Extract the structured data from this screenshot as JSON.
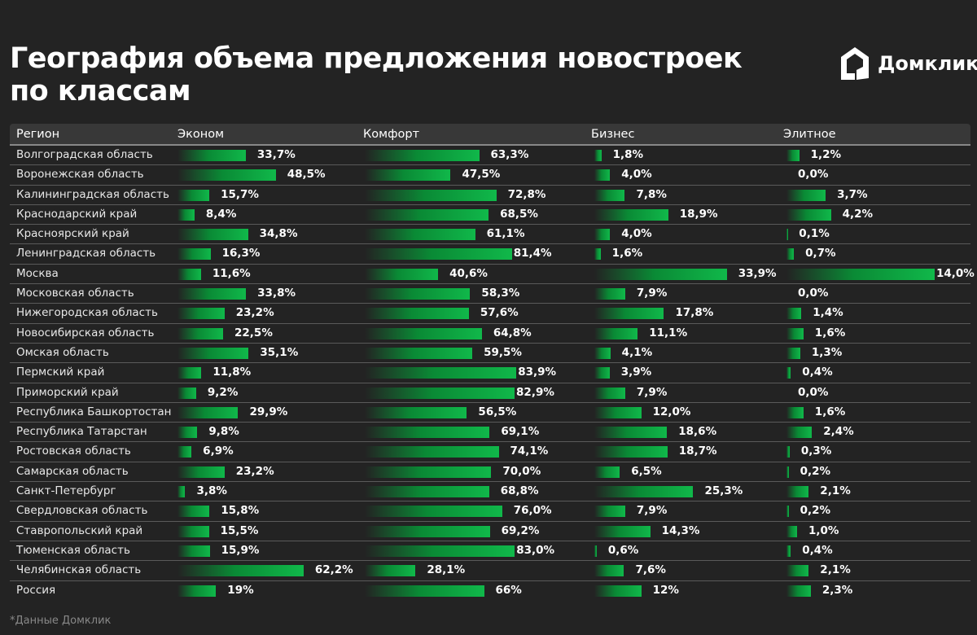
{
  "title": "География объема предложения новостроек по классам",
  "logo": "Домклик",
  "footnote": "*Данные Домклик",
  "chart_data": {
    "type": "table",
    "title": "География объема предложения новостроек по классам",
    "columns": [
      "Регион",
      "Эконом",
      "Комфорт",
      "Бизнес",
      "Элитное"
    ],
    "rows": [
      {
        "region": "Волгоградская область",
        "values": [
          "33,7%",
          "63,3%",
          "1,8%",
          "1,2%"
        ]
      },
      {
        "region": "Воронежская область",
        "values": [
          "48,5%",
          "47,5%",
          "4,0%",
          "0,0%"
        ]
      },
      {
        "region": "Калининградская область",
        "values": [
          "15,7%",
          "72,8%",
          "7,8%",
          "3,7%"
        ]
      },
      {
        "region": "Краснодарский край",
        "values": [
          "8,4%",
          "68,5%",
          "18,9%",
          "4,2%"
        ]
      },
      {
        "region": "Красноярский край",
        "values": [
          "34,8%",
          "61,1%",
          "4,0%",
          "0,1%"
        ]
      },
      {
        "region": "Ленинградская область",
        "values": [
          "16,3%",
          "81,4%",
          "1,6%",
          "0,7%"
        ]
      },
      {
        "region": "Москва",
        "values": [
          "11,6%",
          "40,6%",
          "33,9%",
          "14,0%"
        ]
      },
      {
        "region": "Московская область",
        "values": [
          "33,8%",
          "58,3%",
          "7,9%",
          "0,0%"
        ]
      },
      {
        "region": "Нижегородская область",
        "values": [
          "23,2%",
          "57,6%",
          "17,8%",
          "1,4%"
        ]
      },
      {
        "region": "Новосибирская область",
        "values": [
          "22,5%",
          "64,8%",
          "11,1%",
          "1,6%"
        ]
      },
      {
        "region": "Омская область",
        "values": [
          "35,1%",
          "59,5%",
          "4,1%",
          "1,3%"
        ]
      },
      {
        "region": "Пермский край",
        "values": [
          "11,8%",
          "83,9%",
          "3,9%",
          "0,4%"
        ]
      },
      {
        "region": "Приморский край",
        "values": [
          "9,2%",
          "82,9%",
          "7,9%",
          "0,0%"
        ]
      },
      {
        "region": "Республика Башкортостан",
        "values": [
          "29,9%",
          "56,5%",
          "12,0%",
          "1,6%"
        ]
      },
      {
        "region": "Республика Татарстан",
        "values": [
          "9,8%",
          "69,1%",
          "18,6%",
          "2,4%"
        ]
      },
      {
        "region": "Ростовская область",
        "values": [
          "6,9%",
          "74,1%",
          "18,7%",
          "0,3%"
        ]
      },
      {
        "region": "Самарская область",
        "values": [
          "23,2%",
          "70,0%",
          "6,5%",
          "0,2%"
        ]
      },
      {
        "region": "Санкт-Петербург",
        "values": [
          "3,8%",
          "68,8%",
          "25,3%",
          "2,1%"
        ]
      },
      {
        "region": "Свердловская область",
        "values": [
          "15,8%",
          "76,0%",
          "7,9%",
          "0,2%"
        ]
      },
      {
        "region": "Ставропольский край",
        "values": [
          "15,5%",
          "69,2%",
          "14,3%",
          "1,0%"
        ]
      },
      {
        "region": "Тюменская область",
        "values": [
          "15,9%",
          "83,0%",
          "0,6%",
          "0,4%"
        ]
      },
      {
        "region": "Челябинская область",
        "values": [
          "62,2%",
          "28,1%",
          "7,6%",
          "2,1%"
        ]
      },
      {
        "region": "Россия",
        "values": [
          "19%",
          "66%",
          "12%",
          "2,3%"
        ]
      }
    ],
    "bar_color": "#10b84a"
  }
}
